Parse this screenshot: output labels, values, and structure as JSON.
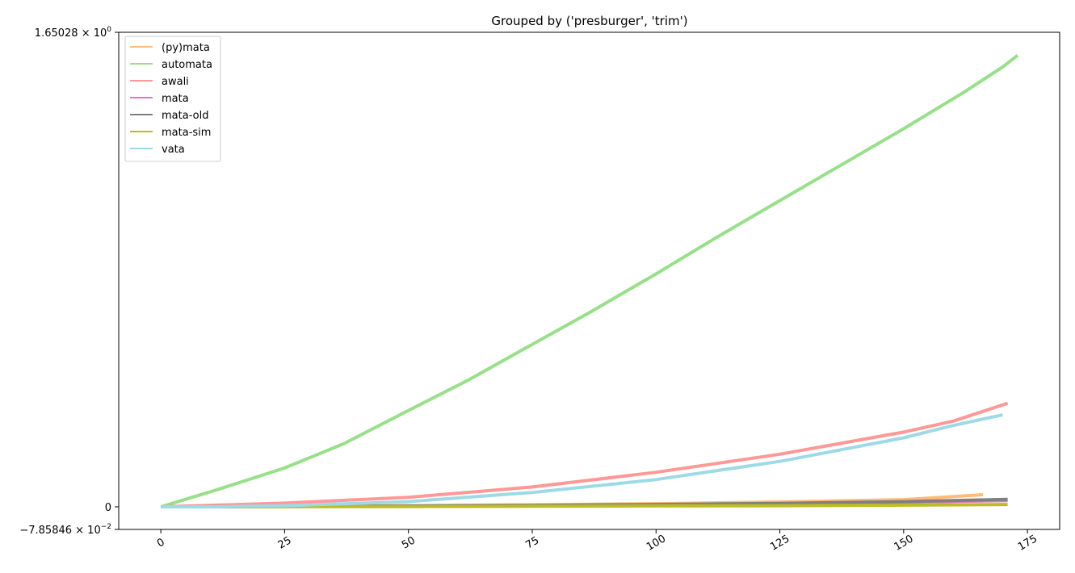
{
  "chart_data": {
    "type": "line",
    "title": "Grouped by ('presburger', 'trim')",
    "xlabel": "",
    "ylabel": "",
    "xlim": [
      -8.5,
      181.5
    ],
    "ylim": [
      -0.0785846,
      1.65028
    ],
    "x_ticks": [
      0,
      25,
      50,
      75,
      100,
      125,
      150,
      175
    ],
    "x_tick_labels": [
      "0",
      "25",
      "50",
      "75",
      "100",
      "125",
      "150",
      "175"
    ],
    "y_ticks": [
      {
        "value": 1.65028,
        "mantissa": "1.65028",
        "exponent": "0"
      },
      {
        "value": 0,
        "plain": "0"
      },
      {
        "value": -0.0785846,
        "mantissa": "−7.85846",
        "exponent": "−2"
      }
    ],
    "legend_position": "upper-left",
    "grid": false,
    "series": [
      {
        "name": "(py)mata",
        "color": "#ffbb78",
        "x": [
          0,
          25,
          50,
          75,
          100,
          125,
          150,
          166
        ],
        "y": [
          0.0,
          0.002,
          0.004,
          0.007,
          0.011,
          0.017,
          0.025,
          0.042
        ]
      },
      {
        "name": "automata",
        "color": "#98df8a",
        "x": [
          0,
          12,
          25,
          37,
          50,
          62,
          75,
          87,
          100,
          112,
          125,
          137,
          150,
          162,
          170,
          173
        ],
        "y": [
          0.0,
          0.063,
          0.135,
          0.22,
          0.335,
          0.44,
          0.565,
          0.68,
          0.81,
          0.935,
          1.065,
          1.185,
          1.315,
          1.44,
          1.53,
          1.57
        ]
      },
      {
        "name": "awali",
        "color": "#ff9896",
        "x": [
          0,
          25,
          50,
          75,
          100,
          125,
          150,
          160,
          171
        ],
        "y": [
          0.0,
          0.013,
          0.033,
          0.069,
          0.12,
          0.183,
          0.26,
          0.298,
          0.36
        ]
      },
      {
        "name": "mata",
        "color": "#e377c2",
        "x": [
          0,
          25,
          50,
          75,
          100,
          125,
          150,
          171
        ],
        "y": [
          0.0,
          0.001,
          0.002,
          0.004,
          0.007,
          0.011,
          0.016,
          0.022
        ]
      },
      {
        "name": "mata-old",
        "color": "#7f7f7f",
        "x": [
          0,
          25,
          50,
          75,
          100,
          125,
          150,
          171
        ],
        "y": [
          0.0,
          0.001,
          0.003,
          0.005,
          0.008,
          0.012,
          0.018,
          0.026
        ]
      },
      {
        "name": "mata-sim",
        "color": "#bcbd22",
        "x": [
          0,
          25,
          50,
          75,
          100,
          125,
          150,
          171
        ],
        "y": [
          0.0,
          0.0005,
          0.001,
          0.002,
          0.003,
          0.004,
          0.006,
          0.008
        ]
      },
      {
        "name": "vata",
        "color": "#9edae5",
        "x": [
          0,
          10,
          25,
          50,
          75,
          100,
          125,
          150,
          160,
          170
        ],
        "y": [
          0.0,
          0.0,
          0.004,
          0.018,
          0.05,
          0.095,
          0.158,
          0.24,
          0.283,
          0.32
        ]
      }
    ]
  }
}
